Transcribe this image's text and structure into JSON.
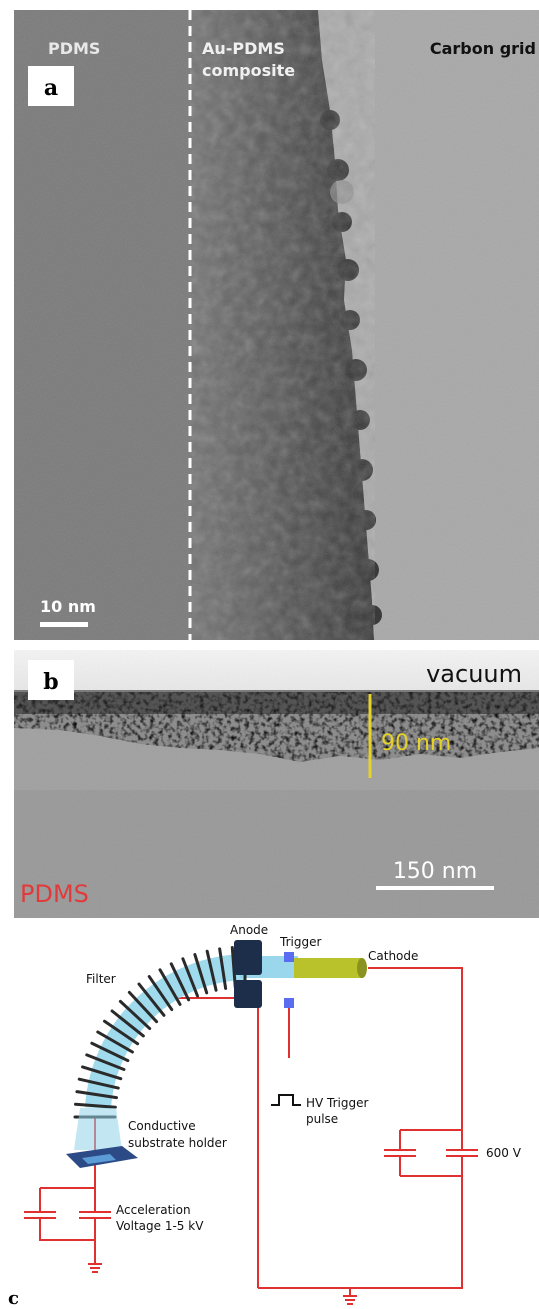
{
  "panel_a": {
    "letter": "a",
    "region_left": "PDMS",
    "region_mid_line1": "Au-PDMS",
    "region_mid_line2": "composite",
    "region_right": "Carbon grid",
    "scale_bar": "10 nm"
  },
  "panel_b": {
    "letter": "b",
    "top_label": "vacuum",
    "thickness_label": "90 nm",
    "bottom_label": "PDMS",
    "scale_bar": "150 nm",
    "colors": {
      "thickness": "#e6d22a",
      "pdms": "#e23a3a"
    }
  },
  "panel_c": {
    "letter": "c",
    "anode": "Anode",
    "trigger": "Trigger",
    "cathode": "Cathode",
    "filter": "Filter",
    "hv_line1": "HV Trigger",
    "hv_line2": "pulse",
    "holder_line1": "Conductive",
    "holder_line2": "substrate  holder",
    "cap_voltage": "600 V",
    "accel_line1": "Acceleration",
    "accel_line2": "Voltage 1-5 kV",
    "colors": {
      "wire": "#e03030",
      "plasma": "#8fd3ea",
      "cathode": "#b9c22a",
      "anode": "#1c2e4a",
      "trigger": "#5a6cf0"
    }
  }
}
